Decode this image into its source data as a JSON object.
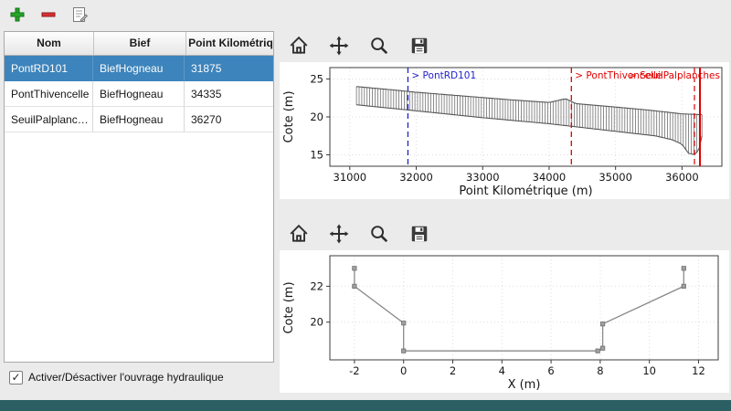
{
  "window": {
    "bg": "#ebebeb",
    "status_bar_color": "#2b5f63"
  },
  "main_toolbar": {
    "buttons": [
      {
        "name": "add",
        "icon": "plus-icon",
        "color": "#28a428"
      },
      {
        "name": "remove",
        "icon": "minus-icon",
        "color": "#d83131"
      },
      {
        "name": "edit",
        "icon": "edit-document-icon"
      }
    ]
  },
  "table": {
    "columns": [
      "Nom",
      "Bief",
      "Point Kilométrique"
    ],
    "selection_color": "#3d84bc",
    "rows": [
      {
        "nom": "PontRD101",
        "bief": "BiefHogneau",
        "pk": "31875",
        "selected": true
      },
      {
        "nom": "PontThivencelle",
        "bief": "BiefHogneau",
        "pk": "34335",
        "selected": false
      },
      {
        "nom": "SeuilPalplanches",
        "bief": "BiefHogneau",
        "pk": "36270",
        "selected": false
      }
    ]
  },
  "checkbox": {
    "label": "Activer/Désactiver l'ouvrage hydraulique",
    "checked": true
  },
  "plot_toolbar": {
    "icons": [
      "home",
      "pan",
      "zoom",
      "save"
    ]
  },
  "chart_data": [
    {
      "type": "area",
      "title": "",
      "xlabel": "Point Kilométrique (m)",
      "ylabel": "Cote (m)",
      "xlim": [
        30700,
        36600
      ],
      "ylim": [
        13.5,
        26.5
      ],
      "xticks": [
        31000,
        32000,
        33000,
        34000,
        35000,
        36000
      ],
      "yticks": [
        15,
        20,
        25
      ],
      "profile_range": [
        31100,
        36300
      ],
      "top_profile": [
        [
          31100,
          24.0
        ],
        [
          31600,
          23.6
        ],
        [
          32000,
          23.25
        ],
        [
          32500,
          22.9
        ],
        [
          33000,
          22.55
        ],
        [
          33500,
          22.2
        ],
        [
          34000,
          21.9
        ],
        [
          34250,
          22.4
        ],
        [
          34400,
          21.75
        ],
        [
          35000,
          21.3
        ],
        [
          35500,
          20.9
        ],
        [
          36000,
          20.4
        ],
        [
          36300,
          20.3
        ]
      ],
      "bottom_profile": [
        [
          31100,
          21.6
        ],
        [
          32000,
          20.8
        ],
        [
          33000,
          19.9
        ],
        [
          34000,
          19.1
        ],
        [
          34500,
          18.6
        ],
        [
          35000,
          18.1
        ],
        [
          35600,
          17.5
        ],
        [
          35850,
          17.0
        ],
        [
          36000,
          16.4
        ],
        [
          36100,
          15.2
        ],
        [
          36200,
          15.0
        ],
        [
          36280,
          16.2
        ],
        [
          36300,
          17.5
        ]
      ],
      "structures": [
        {
          "label": "> PontRD101",
          "pk": 31875,
          "color": "#2222cc",
          "bold": false
        },
        {
          "label": "> PontThivencelle",
          "pk": 34335,
          "color": "#e00000",
          "bold": false
        },
        {
          "label": "> SeuilPalplanches",
          "pk": 36270,
          "color": "#e00000",
          "bold": true
        }
      ]
    },
    {
      "type": "line",
      "title": "",
      "xlabel": "X (m)",
      "ylabel": "Cote (m)",
      "xlim": [
        -3,
        12.8
      ],
      "ylim": [
        17.9,
        23.7
      ],
      "xticks": [
        -2,
        0,
        2,
        4,
        6,
        8,
        10,
        12
      ],
      "yticks": [
        20,
        22
      ],
      "series": [
        {
          "name": "cross-section",
          "color": "#8a8a8a",
          "points": [
            [
              -2,
              23
            ],
            [
              -2,
              22
            ],
            [
              0,
              19.95
            ],
            [
              0,
              18.4
            ],
            [
              7.9,
              18.4
            ],
            [
              8.1,
              18.55
            ],
            [
              8.1,
              19.9
            ],
            [
              11.4,
              22
            ],
            [
              11.4,
              23
            ]
          ]
        }
      ]
    }
  ]
}
